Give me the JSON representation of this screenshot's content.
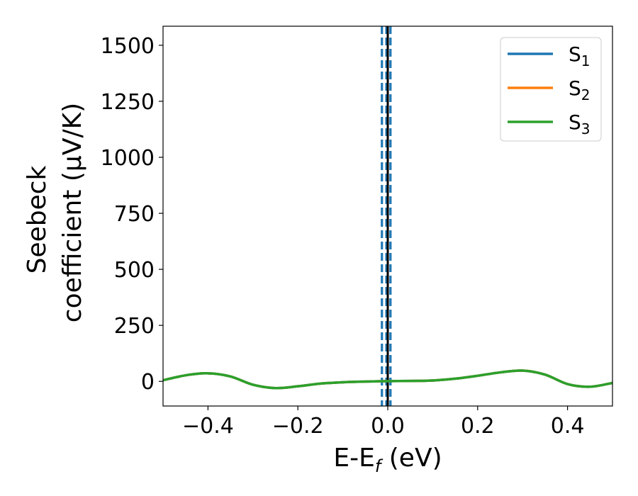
{
  "chart_data": {
    "type": "line",
    "xlabel": "E-E",
    "xlabel_sub": "f",
    "xlabel_unit": " (eV)",
    "ylabel_line1": "Seebeck",
    "ylabel_line2": "coefficient  (μV/K)",
    "xlim": [
      -0.5,
      0.5
    ],
    "ylim": [
      -110,
      1585
    ],
    "xticks": [
      -0.4,
      -0.2,
      0.0,
      0.2,
      0.4
    ],
    "xtick_labels": [
      "−0.4",
      "−0.2",
      "0.0",
      "0.2",
      "0.4"
    ],
    "yticks": [
      0,
      250,
      500,
      750,
      1000,
      1250,
      1500
    ],
    "ytick_labels": [
      "0",
      "250",
      "500",
      "750",
      "1000",
      "1250",
      "1500"
    ],
    "grid": false,
    "legend_position": "top-right",
    "vertical_lines": [
      {
        "x": 0.0,
        "style": "solid",
        "color": "#000000"
      },
      {
        "x": -0.013,
        "style": "dashed",
        "color": "#1f77b4"
      },
      {
        "x": -0.003,
        "style": "dashed",
        "color": "#1f77b4"
      },
      {
        "x": 0.006,
        "style": "dashed",
        "color": "#1f77b4"
      }
    ],
    "x": [
      -0.5,
      -0.45,
      -0.4,
      -0.35,
      -0.3,
      -0.25,
      -0.2,
      -0.15,
      -0.1,
      -0.05,
      0.0,
      0.05,
      0.1,
      0.15,
      0.2,
      0.25,
      0.3,
      0.35,
      0.4,
      0.45,
      0.5
    ],
    "series": [
      {
        "name": "S",
        "sub": "1",
        "color": "#1f77b4",
        "values": [
          5,
          27,
          36,
          22,
          -15,
          -30,
          -22,
          -10,
          -4,
          -1,
          1,
          2,
          4,
          12,
          25,
          40,
          48,
          30,
          -12,
          -24,
          -7
        ]
      },
      {
        "name": "S",
        "sub": "2",
        "color": "#ff7f0e",
        "values": [
          5,
          27,
          36,
          22,
          -15,
          -30,
          -22,
          -10,
          -4,
          -1,
          1,
          2,
          4,
          12,
          25,
          40,
          48,
          30,
          -12,
          -24,
          -7
        ]
      },
      {
        "name": "S",
        "sub": "3",
        "color": "#2ca02c",
        "values": [
          5,
          27,
          36,
          22,
          -15,
          -30,
          -22,
          -10,
          -4,
          -1,
          1,
          2,
          4,
          12,
          25,
          40,
          48,
          30,
          -12,
          -24,
          -7
        ]
      }
    ]
  }
}
